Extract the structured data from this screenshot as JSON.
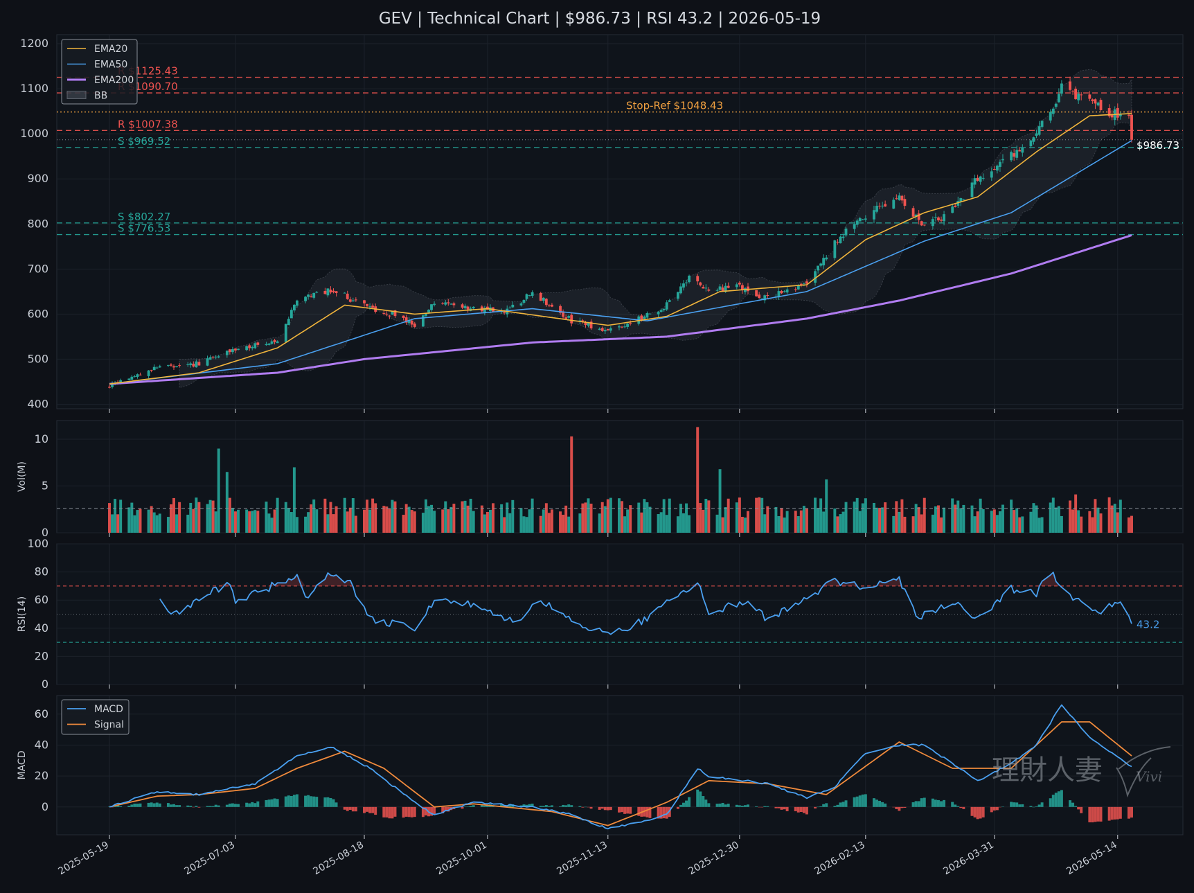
{
  "title": "GEV | Technical Chart | $986.73 | RSI 43.2 | 2026-05-19",
  "watermark": {
    "cjk": "理財人妻",
    "script": "Vivi"
  },
  "colors": {
    "background": "#0e1117",
    "panel": "#0f141b",
    "grid": "#1c222b",
    "up": "#26a69a",
    "down": "#ef5350",
    "ema20": "#f0b43c",
    "ema50": "#4aa0f0",
    "ema200": "#b07cf0",
    "bb_fill": "#8890a0",
    "resistance": "#ef5350",
    "support": "#26a69a",
    "stop": "#f0a040",
    "rsi": "#4aa0f0",
    "macd": "#4aa0f0",
    "signal": "#f08a3c"
  },
  "chart_data": [
    {
      "type": "candlestick",
      "panel": "price",
      "x_range": [
        "2025-05-19",
        "2026-05-19"
      ],
      "ylim": [
        390,
        1220
      ],
      "yticks": [
        400,
        500,
        600,
        700,
        800,
        900,
        1000,
        1100,
        1200
      ],
      "x_tick_labels": [
        "2025-05-19",
        "2025-07-03",
        "2025-08-18",
        "2025-10-01",
        "2025-11-13",
        "2025-12-30",
        "2026-02-13",
        "2026-03-31",
        "2026-05-14"
      ],
      "legend": {
        "position": "top-left",
        "entries": [
          "EMA20",
          "EMA50",
          "EMA200",
          "BB"
        ]
      },
      "close_anchors": [
        [
          "2025-05-19",
          438
        ],
        [
          "2025-06-05",
          480
        ],
        [
          "2025-06-20",
          490
        ],
        [
          "2025-07-01",
          515
        ],
        [
          "2025-07-18",
          545
        ],
        [
          "2025-07-25",
          635
        ],
        [
          "2025-08-06",
          655
        ],
        [
          "2025-08-18",
          620
        ],
        [
          "2025-08-29",
          598
        ],
        [
          "2025-09-05",
          575
        ],
        [
          "2025-09-12",
          630
        ],
        [
          "2025-09-26",
          612
        ],
        [
          "2025-10-08",
          605
        ],
        [
          "2025-10-17",
          650
        ],
        [
          "2025-10-31",
          585
        ],
        [
          "2025-11-13",
          560
        ],
        [
          "2025-11-24",
          590
        ],
        [
          "2025-12-04",
          620
        ],
        [
          "2025-12-12",
          680
        ],
        [
          "2025-12-19",
          650
        ],
        [
          "2025-12-30",
          660
        ],
        [
          "2026-01-09",
          635
        ],
        [
          "2026-01-23",
          668
        ],
        [
          "2026-02-02",
          760
        ],
        [
          "2026-02-11",
          810
        ],
        [
          "2026-02-25",
          860
        ],
        [
          "2026-03-06",
          790
        ],
        [
          "2026-03-16",
          830
        ],
        [
          "2026-03-25",
          900
        ],
        [
          "2026-04-06",
          950
        ],
        [
          "2026-04-15",
          1000
        ],
        [
          "2026-04-24",
          1100
        ],
        [
          "2026-05-01",
          1075
        ],
        [
          "2026-05-11",
          1050
        ],
        [
          "2026-05-18",
          1040
        ],
        [
          "2026-05-19",
          986.73
        ]
      ],
      "ema20_anchors": [
        [
          "2025-05-19",
          445
        ],
        [
          "2025-06-20",
          470
        ],
        [
          "2025-07-18",
          525
        ],
        [
          "2025-08-11",
          620
        ],
        [
          "2025-09-05",
          600
        ],
        [
          "2025-10-01",
          612
        ],
        [
          "2025-11-13",
          575
        ],
        [
          "2025-12-04",
          595
        ],
        [
          "2025-12-23",
          650
        ],
        [
          "2026-01-23",
          665
        ],
        [
          "2026-02-13",
          765
        ],
        [
          "2026-03-06",
          825
        ],
        [
          "2026-03-25",
          860
        ],
        [
          "2026-04-15",
          960
        ],
        [
          "2026-05-04",
          1040
        ],
        [
          "2026-05-19",
          1045
        ]
      ],
      "ema50_anchors": [
        [
          "2025-05-19",
          445
        ],
        [
          "2025-07-18",
          490
        ],
        [
          "2025-09-05",
          590
        ],
        [
          "2025-10-17",
          612
        ],
        [
          "2025-11-27",
          585
        ],
        [
          "2025-12-23",
          615
        ],
        [
          "2026-01-23",
          650
        ],
        [
          "2026-03-06",
          762
        ],
        [
          "2026-04-06",
          825
        ],
        [
          "2026-05-19",
          985
        ]
      ],
      "ema200_anchors": [
        [
          "2025-05-19",
          445
        ],
        [
          "2025-07-18",
          470
        ],
        [
          "2025-08-18",
          500
        ],
        [
          "2025-10-17",
          537
        ],
        [
          "2025-12-04",
          550
        ],
        [
          "2026-01-23",
          590
        ],
        [
          "2026-02-25",
          630
        ],
        [
          "2026-04-06",
          690
        ],
        [
          "2026-05-19",
          775
        ]
      ],
      "levels": [
        {
          "label": "R $1125.43",
          "value": 1125.43,
          "kind": "resistance"
        },
        {
          "label": "R $1090.70",
          "value": 1090.7,
          "kind": "resistance"
        },
        {
          "label": "Stop-Ref $1048.43",
          "value": 1048.43,
          "kind": "stop"
        },
        {
          "label": "R $1007.38",
          "value": 1007.38,
          "kind": "resistance"
        },
        {
          "label": "S $969.52",
          "value": 969.52,
          "kind": "support"
        },
        {
          "label": "S $802.27",
          "value": 802.27,
          "kind": "support"
        },
        {
          "label": "S $776.53",
          "value": 776.53,
          "kind": "support"
        }
      ],
      "last_price": 986.73,
      "last_price_label": "$986.73"
    },
    {
      "type": "bar",
      "panel": "volume",
      "ylabel": "Vol(M)",
      "ylim": [
        0,
        12
      ],
      "yticks": [
        0,
        5,
        10
      ],
      "average": 2.6,
      "spikes": [
        [
          "2025-06-27",
          9.0
        ],
        [
          "2025-06-30",
          6.5
        ],
        [
          "2025-07-24",
          7.0
        ],
        [
          "2025-10-31",
          10.3
        ],
        [
          "2025-12-15",
          11.3
        ],
        [
          "2025-12-23",
          6.8
        ],
        [
          "2026-01-30",
          5.7
        ],
        [
          "2026-04-29",
          4.1
        ]
      ]
    },
    {
      "type": "line",
      "panel": "rsi",
      "ylabel": "RSI(14)",
      "ylim": [
        0,
        100
      ],
      "yticks": [
        0,
        20,
        40,
        60,
        80,
        100
      ],
      "overbought": 70,
      "oversold": 30,
      "midline": 50,
      "last_value": 43.2,
      "last_value_label": "43.2",
      "anchors": [
        [
          "2025-06-06",
          63
        ],
        [
          "2025-06-10",
          49
        ],
        [
          "2025-06-20",
          60
        ],
        [
          "2025-07-01",
          73
        ],
        [
          "2025-07-03",
          58
        ],
        [
          "2025-07-25",
          78
        ],
        [
          "2025-07-29",
          60
        ],
        [
          "2025-08-05",
          79
        ],
        [
          "2025-08-13",
          73
        ],
        [
          "2025-08-20",
          47
        ],
        [
          "2025-09-05",
          40
        ],
        [
          "2025-09-12",
          58
        ],
        [
          "2025-09-26",
          58
        ],
        [
          "2025-10-10",
          44
        ],
        [
          "2025-10-20",
          60
        ],
        [
          "2025-11-05",
          40
        ],
        [
          "2025-11-14",
          36
        ],
        [
          "2025-11-25",
          45
        ],
        [
          "2025-12-04",
          58
        ],
        [
          "2025-12-15",
          74
        ],
        [
          "2025-12-19",
          50
        ],
        [
          "2026-01-02",
          61
        ],
        [
          "2026-01-09",
          45
        ],
        [
          "2026-01-23",
          63
        ],
        [
          "2026-02-02",
          73
        ],
        [
          "2026-02-13",
          70
        ],
        [
          "2026-02-25",
          75
        ],
        [
          "2026-03-04",
          47
        ],
        [
          "2026-03-16",
          60
        ],
        [
          "2026-03-25",
          46
        ],
        [
          "2026-04-06",
          68
        ],
        [
          "2026-04-15",
          65
        ],
        [
          "2026-04-20",
          80
        ],
        [
          "2026-04-29",
          60
        ],
        [
          "2026-05-08",
          53
        ],
        [
          "2026-05-15",
          57
        ],
        [
          "2026-05-19",
          43.2
        ]
      ]
    },
    {
      "type": "line",
      "panel": "macd",
      "ylabel": "MACD",
      "ylim": [
        -18,
        72
      ],
      "yticks": [
        0,
        20,
        40,
        60
      ],
      "legend": {
        "position": "top-left",
        "entries": [
          "MACD",
          "Signal"
        ]
      },
      "macd_anchors": [
        [
          "2025-05-19",
          0
        ],
        [
          "2025-06-05",
          10
        ],
        [
          "2025-06-20",
          8
        ],
        [
          "2025-07-10",
          15
        ],
        [
          "2025-07-25",
          33
        ],
        [
          "2025-08-06",
          39
        ],
        [
          "2025-08-20",
          25
        ],
        [
          "2025-09-05",
          3
        ],
        [
          "2025-09-12",
          -5
        ],
        [
          "2025-09-26",
          3
        ],
        [
          "2025-10-17",
          0
        ],
        [
          "2025-10-31",
          -5
        ],
        [
          "2025-11-13",
          -14
        ],
        [
          "2025-11-24",
          -10
        ],
        [
          "2025-12-04",
          -5
        ],
        [
          "2025-12-15",
          25
        ],
        [
          "2025-12-19",
          20
        ],
        [
          "2026-01-09",
          15
        ],
        [
          "2026-01-23",
          6
        ],
        [
          "2026-02-02",
          13
        ],
        [
          "2026-02-13",
          35
        ],
        [
          "2026-02-25",
          40
        ],
        [
          "2026-03-06",
          40
        ],
        [
          "2026-03-16",
          28
        ],
        [
          "2026-03-25",
          17
        ],
        [
          "2026-04-06",
          28
        ],
        [
          "2026-04-15",
          40
        ],
        [
          "2026-04-24",
          66
        ],
        [
          "2026-05-04",
          45
        ],
        [
          "2026-05-19",
          26
        ]
      ],
      "signal_anchors": [
        [
          "2025-05-19",
          0
        ],
        [
          "2025-06-05",
          7
        ],
        [
          "2025-06-20",
          8
        ],
        [
          "2025-07-10",
          12
        ],
        [
          "2025-07-25",
          25
        ],
        [
          "2025-08-11",
          36
        ],
        [
          "2025-08-25",
          25
        ],
        [
          "2025-09-12",
          0
        ],
        [
          "2025-09-26",
          2
        ],
        [
          "2025-10-24",
          -3
        ],
        [
          "2025-11-13",
          -12
        ],
        [
          "2025-12-04",
          3
        ],
        [
          "2025-12-19",
          17
        ],
        [
          "2026-01-09",
          15
        ],
        [
          "2026-01-30",
          8
        ],
        [
          "2026-02-25",
          42
        ],
        [
          "2026-03-16",
          25
        ],
        [
          "2026-04-06",
          25
        ],
        [
          "2026-04-24",
          55
        ],
        [
          "2026-05-04",
          55
        ],
        [
          "2026-05-19",
          33
        ]
      ]
    }
  ]
}
